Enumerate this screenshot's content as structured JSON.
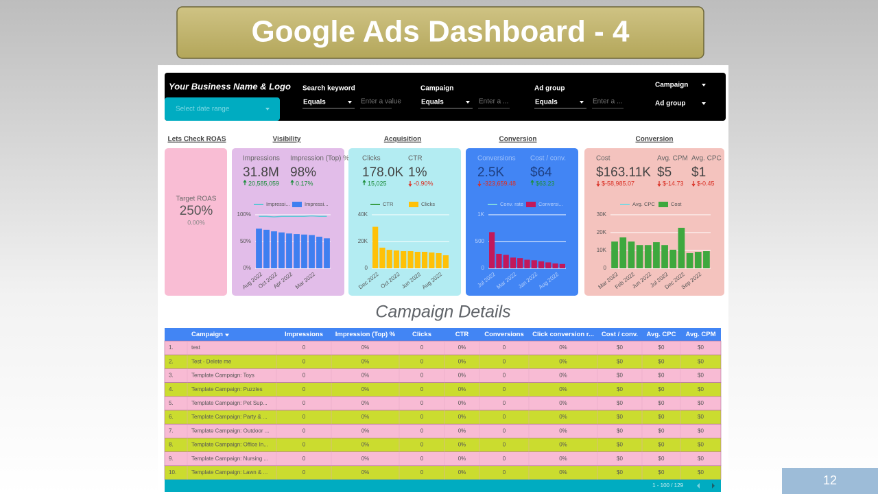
{
  "slide": {
    "title": "Google Ads Dashboard - 4",
    "page_number": 12
  },
  "header": {
    "business_name": "Your Business Name & Logo",
    "date_range": "Select date range",
    "filters": [
      {
        "label": "Search keyword",
        "operator": "Equals",
        "placeholder": "Enter a value"
      },
      {
        "label": "Campaign",
        "operator": "Equals",
        "placeholder": "Enter a ..."
      },
      {
        "label": "Ad group",
        "operator": "Equals",
        "placeholder": "Enter a ..."
      }
    ],
    "dropdowns": [
      "Campaign",
      "Ad group"
    ]
  },
  "sections": [
    "Lets Check ROAS",
    "Visibility",
    "Acquisition",
    "Conversion",
    "Conversion"
  ],
  "roas": {
    "label": "Target ROAS",
    "value": "250%",
    "change": "0.00%"
  },
  "cards": [
    {
      "kpis": [
        {
          "label": "Impressions",
          "value": "31.8M",
          "change": "20,585,059",
          "direction": "up"
        },
        {
          "label": "Impression (Top) %",
          "value": "98%",
          "change": "0.17%",
          "direction": "up"
        }
      ]
    },
    {
      "kpis": [
        {
          "label": "Clicks",
          "value": "178.0K",
          "change": "15,025",
          "direction": "up"
        },
        {
          "label": "CTR",
          "value": "1%",
          "change": "-0.90%",
          "direction": "down"
        }
      ]
    },
    {
      "kpis": [
        {
          "label": "Conversions",
          "value": "2.5K",
          "change": "-323,659.48",
          "direction": "down"
        },
        {
          "label": "Cost / conv.",
          "value": "$64",
          "change": "$63.23",
          "direction": "up"
        }
      ]
    },
    {
      "kpis": [
        {
          "label": "Cost",
          "value": "$163.11K",
          "change": "$-58,985.07",
          "direction": "down"
        },
        {
          "label": "Avg. CPM",
          "value": "$5",
          "change": "$-14.73",
          "direction": "down"
        },
        {
          "label": "Avg. CPC",
          "value": "$1",
          "change": "$-0.45",
          "direction": "down"
        }
      ]
    }
  ],
  "chart_data": [
    {
      "type": "bar",
      "grid": true,
      "categories": [
        "Aug 2022",
        null,
        "Oct 2022",
        null,
        "Apr 2022",
        null,
        null,
        "Mar 2022",
        null,
        null
      ],
      "ylim": [
        0,
        100
      ],
      "yticks": [
        {
          "value": 0,
          "label": "0%"
        },
        {
          "value": 50,
          "label": "50%"
        },
        {
          "value": 100,
          "label": "100%"
        }
      ],
      "series": [
        {
          "name": "Impressi...",
          "kind": "line",
          "color": "#5cc6d6",
          "values": [
            97,
            97,
            96,
            97,
            97,
            97,
            97,
            98,
            97,
            97
          ]
        },
        {
          "name": "Impressi...",
          "kind": "bar",
          "color": "#3f7ff0",
          "values": [
            74,
            72,
            69,
            67,
            65,
            64,
            63,
            62,
            59,
            56
          ]
        }
      ]
    },
    {
      "type": "bar",
      "grid": true,
      "categories": [
        "Dec 2022",
        null,
        null,
        "Oct 2022",
        null,
        null,
        "Jun 2022",
        null,
        null,
        "Aug 2022",
        null
      ],
      "ylim": [
        0,
        40000
      ],
      "yticks": [
        0,
        {
          "value": 20000,
          "label": "20K"
        },
        {
          "value": 40000,
          "label": "40K"
        }
      ],
      "series": [
        {
          "name": "CTR",
          "kind": "line",
          "color": "#3a9e48",
          "values": [
            null,
            null,
            null,
            null,
            null,
            null,
            null,
            null,
            null,
            null,
            null
          ]
        },
        {
          "name": "Clicks",
          "kind": "bar",
          "color": "#ffc107",
          "values": [
            31000,
            15400,
            13800,
            13300,
            12800,
            12800,
            12300,
            12300,
            11800,
            11300,
            9700
          ]
        }
      ]
    },
    {
      "type": "bar",
      "grid": true,
      "categories": [
        "Jul 2022",
        null,
        null,
        "Mar 2022",
        null,
        null,
        "Jan 2022",
        null,
        null,
        "Aug 2022",
        null
      ],
      "ylim": [
        0,
        1000
      ],
      "yticks": [
        0,
        500,
        {
          "value": 1000,
          "label": "1K"
        }
      ],
      "series": [
        {
          "name": "Conv. rate",
          "kind": "line",
          "color": "#7fd6e0",
          "values": [
            null,
            null,
            null,
            null,
            null,
            null,
            null,
            null,
            null,
            null,
            null
          ]
        },
        {
          "name": "Conversi...",
          "kind": "bar",
          "color": "#c2185b",
          "values": [
            675,
            270,
            250,
            200,
            190,
            160,
            150,
            130,
            110,
            90,
            80
          ]
        }
      ]
    },
    {
      "type": "bar",
      "grid": true,
      "categories": [
        "Mar 2022",
        null,
        "Feb 2022",
        null,
        "Jun 2022",
        null,
        "Jul 2022",
        null,
        "Dec 2022",
        null,
        "Sep 2022",
        null
      ],
      "ylim": [
        0,
        30000
      ],
      "yticks": [
        0,
        {
          "value": 10000,
          "label": "10K"
        },
        {
          "value": 20000,
          "label": "20K"
        },
        {
          "value": 30000,
          "label": "30K"
        }
      ],
      "series": [
        {
          "name": "Avg. CPC",
          "kind": "line",
          "color": "#7fd6e0",
          "values": [
            null,
            null,
            null,
            null,
            null,
            null,
            null,
            null,
            null,
            null,
            null,
            null
          ]
        },
        {
          "name": "Cost",
          "kind": "bar",
          "color": "#3ea83e",
          "values": [
            15000,
            17300,
            15000,
            13000,
            13000,
            14600,
            13000,
            10400,
            22700,
            8500,
            9200,
            9600
          ]
        }
      ]
    }
  ],
  "table": {
    "title": "Campaign Details",
    "columns": [
      "Campaign",
      "Impressions",
      "Impression (Top) %",
      "Clicks",
      "CTR",
      "Conversions",
      "Click conversion r...",
      "Cost / conv.",
      "Avg. CPC",
      "Avg. CPM"
    ],
    "rows": [
      [
        "1.",
        "test",
        "0",
        "0%",
        "0",
        "0%",
        "0",
        "0%",
        "$0",
        "$0",
        "$0"
      ],
      [
        "2.",
        "Test - Delete me",
        "0",
        "0%",
        "0",
        "0%",
        "0",
        "0%",
        "$0",
        "$0",
        "$0"
      ],
      [
        "3.",
        "Template Campaign: Toys",
        "0",
        "0%",
        "0",
        "0%",
        "0",
        "0%",
        "$0",
        "$0",
        "$0"
      ],
      [
        "4.",
        "Template Campaign: Puzzles",
        "0",
        "0%",
        "0",
        "0%",
        "0",
        "0%",
        "$0",
        "$0",
        "$0"
      ],
      [
        "5.",
        "Template Campaign: Pet Sup...",
        "0",
        "0%",
        "0",
        "0%",
        "0",
        "0%",
        "$0",
        "$0",
        "$0"
      ],
      [
        "6.",
        "Template Campaign: Party & ...",
        "0",
        "0%",
        "0",
        "0%",
        "0",
        "0%",
        "$0",
        "$0",
        "$0"
      ],
      [
        "7.",
        "Template Campaign: Outdoor ...",
        "0",
        "0%",
        "0",
        "0%",
        "0",
        "0%",
        "$0",
        "$0",
        "$0"
      ],
      [
        "8.",
        "Template Campaign: Office In...",
        "0",
        "0%",
        "0",
        "0%",
        "0",
        "0%",
        "$0",
        "$0",
        "$0"
      ],
      [
        "9.",
        "Template Campaign: Nursing ...",
        "0",
        "0%",
        "0",
        "0%",
        "0",
        "0%",
        "$0",
        "$0",
        "$0"
      ],
      [
        "10.",
        "Template Campaign: Lawn & ...",
        "0",
        "0%",
        "0",
        "0%",
        "0",
        "0%",
        "$0",
        "$0",
        "$0"
      ]
    ],
    "pagination": "1 - 100 / 129"
  }
}
